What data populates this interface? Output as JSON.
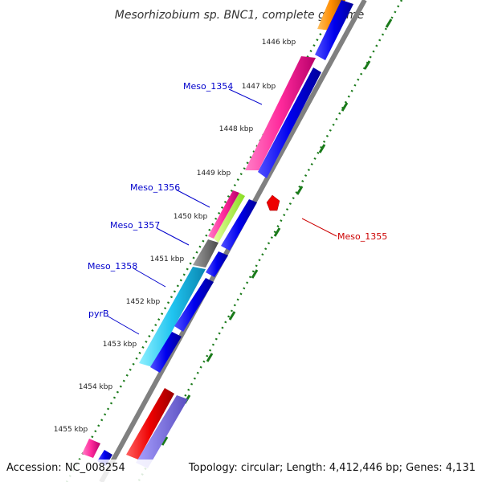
{
  "title": "Mesorhizobium sp. BNC1, complete genome",
  "accession": "Accession: NC_008254",
  "topology": "Topology: circular; Length: 4,412,446 bp; Genes: 4,131",
  "colors": {
    "backbone": "#808080",
    "forward_cds": "#0000ee",
    "tick": "#1a7a1a",
    "label_blue": "#0000cc",
    "label_red": "#cc0000"
  },
  "ticks": [
    "1446 kbp",
    "1447 kbp",
    "1448 kbp",
    "1449 kbp",
    "1450 kbp",
    "1451 kbp",
    "1452 kbp",
    "1453 kbp",
    "1454 kbp",
    "1455 kbp"
  ],
  "labels": {
    "meso_1354": "Meso_1354",
    "meso_1355": "Meso_1355",
    "meso_1356": "Meso_1356",
    "meso_1357": "Meso_1357",
    "meso_1358": "Meso_1358",
    "pyrB": "pyrB"
  }
}
